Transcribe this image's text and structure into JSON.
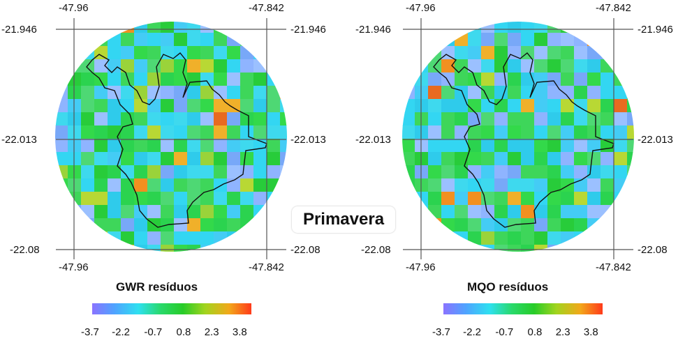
{
  "season_label": "Primavera",
  "colorbar_tick_labels": [
    "-3.7",
    "-2.2",
    "-0.7",
    "0.8",
    "2.3",
    "3.8"
  ],
  "colorbar_colors": [
    "#8a73ff",
    "#4fa3ff",
    "#2ee0f0",
    "#29d96b",
    "#28cc28",
    "#a2d41e",
    "#f2a81a",
    "#ff3a1a"
  ],
  "maps": [
    {
      "id": "gwr",
      "title": "GWR resíduos",
      "lon_labels": [
        "-47.96",
        "-47.842"
      ],
      "lat_labels": [
        "-21.946",
        "-22.013",
        "-22.08"
      ],
      "seed": 7
    },
    {
      "id": "mqo",
      "title": "MQO resíduos",
      "lon_labels": [
        "-47.96",
        "-47.842"
      ],
      "lat_labels": [
        "-21.946",
        "-22.013",
        "-22.08"
      ],
      "seed": 23
    }
  ]
}
